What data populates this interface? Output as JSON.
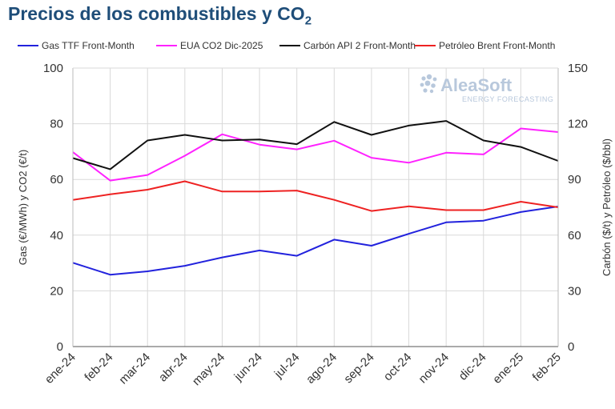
{
  "title": {
    "main": "Precios de los combustibles y CO",
    "sub": "2"
  },
  "watermark": {
    "name": "AleaSoft",
    "tagline": "ENERGY FORECASTING"
  },
  "chart_data": {
    "type": "line",
    "categories": [
      "ene-24",
      "feb-24",
      "mar-24",
      "abr-24",
      "may-24",
      "jun-24",
      "jul-24",
      "ago-24",
      "sep-24",
      "oct-24",
      "nov-24",
      "dic-24",
      "ene-25",
      "feb-25"
    ],
    "ylabel_left": "Gas (€/MWh) y CO2 (€/t)",
    "ylabel_right": "Carbón ($/t) y Petróleo ($/bbl)",
    "ylim_left": [
      0,
      100
    ],
    "yticks_left": [
      0,
      20,
      40,
      60,
      80,
      100
    ],
    "ylim_right": [
      0,
      150
    ],
    "yticks_right": [
      0,
      30,
      60,
      90,
      120,
      150
    ],
    "grid": true,
    "legend_position": "top",
    "series": [
      {
        "name": "Gas TTF Front-Month",
        "axis": "left",
        "color": "#2222dd",
        "values": [
          30.1,
          25.8,
          27.0,
          29.0,
          32.0,
          34.5,
          32.6,
          38.4,
          36.2,
          40.5,
          44.6,
          45.2,
          48.3,
          50.3
        ]
      },
      {
        "name": "EUA CO2 Dic-2025",
        "axis": "left",
        "color": "#ff22ff",
        "values": [
          69.8,
          59.6,
          61.6,
          68.5,
          76.2,
          72.5,
          70.8,
          73.9,
          67.8,
          66.0,
          69.6,
          69.0,
          78.3,
          77.0
        ]
      },
      {
        "name": "Carbón API 2 Front-Month",
        "axis": "right",
        "color": "#111111",
        "values": [
          101.5,
          95.5,
          111.0,
          114.0,
          111.0,
          111.5,
          109.0,
          121.0,
          114.0,
          119.0,
          121.5,
          111.0,
          107.5,
          100.0
        ]
      },
      {
        "name": "Petróleo Brent Front-Month",
        "axis": "right",
        "color": "#ee2222",
        "values": [
          79.0,
          82.0,
          84.5,
          89.0,
          83.5,
          83.5,
          84.0,
          79.0,
          73.0,
          75.5,
          73.5,
          73.5,
          78.0,
          75.0
        ]
      }
    ]
  }
}
